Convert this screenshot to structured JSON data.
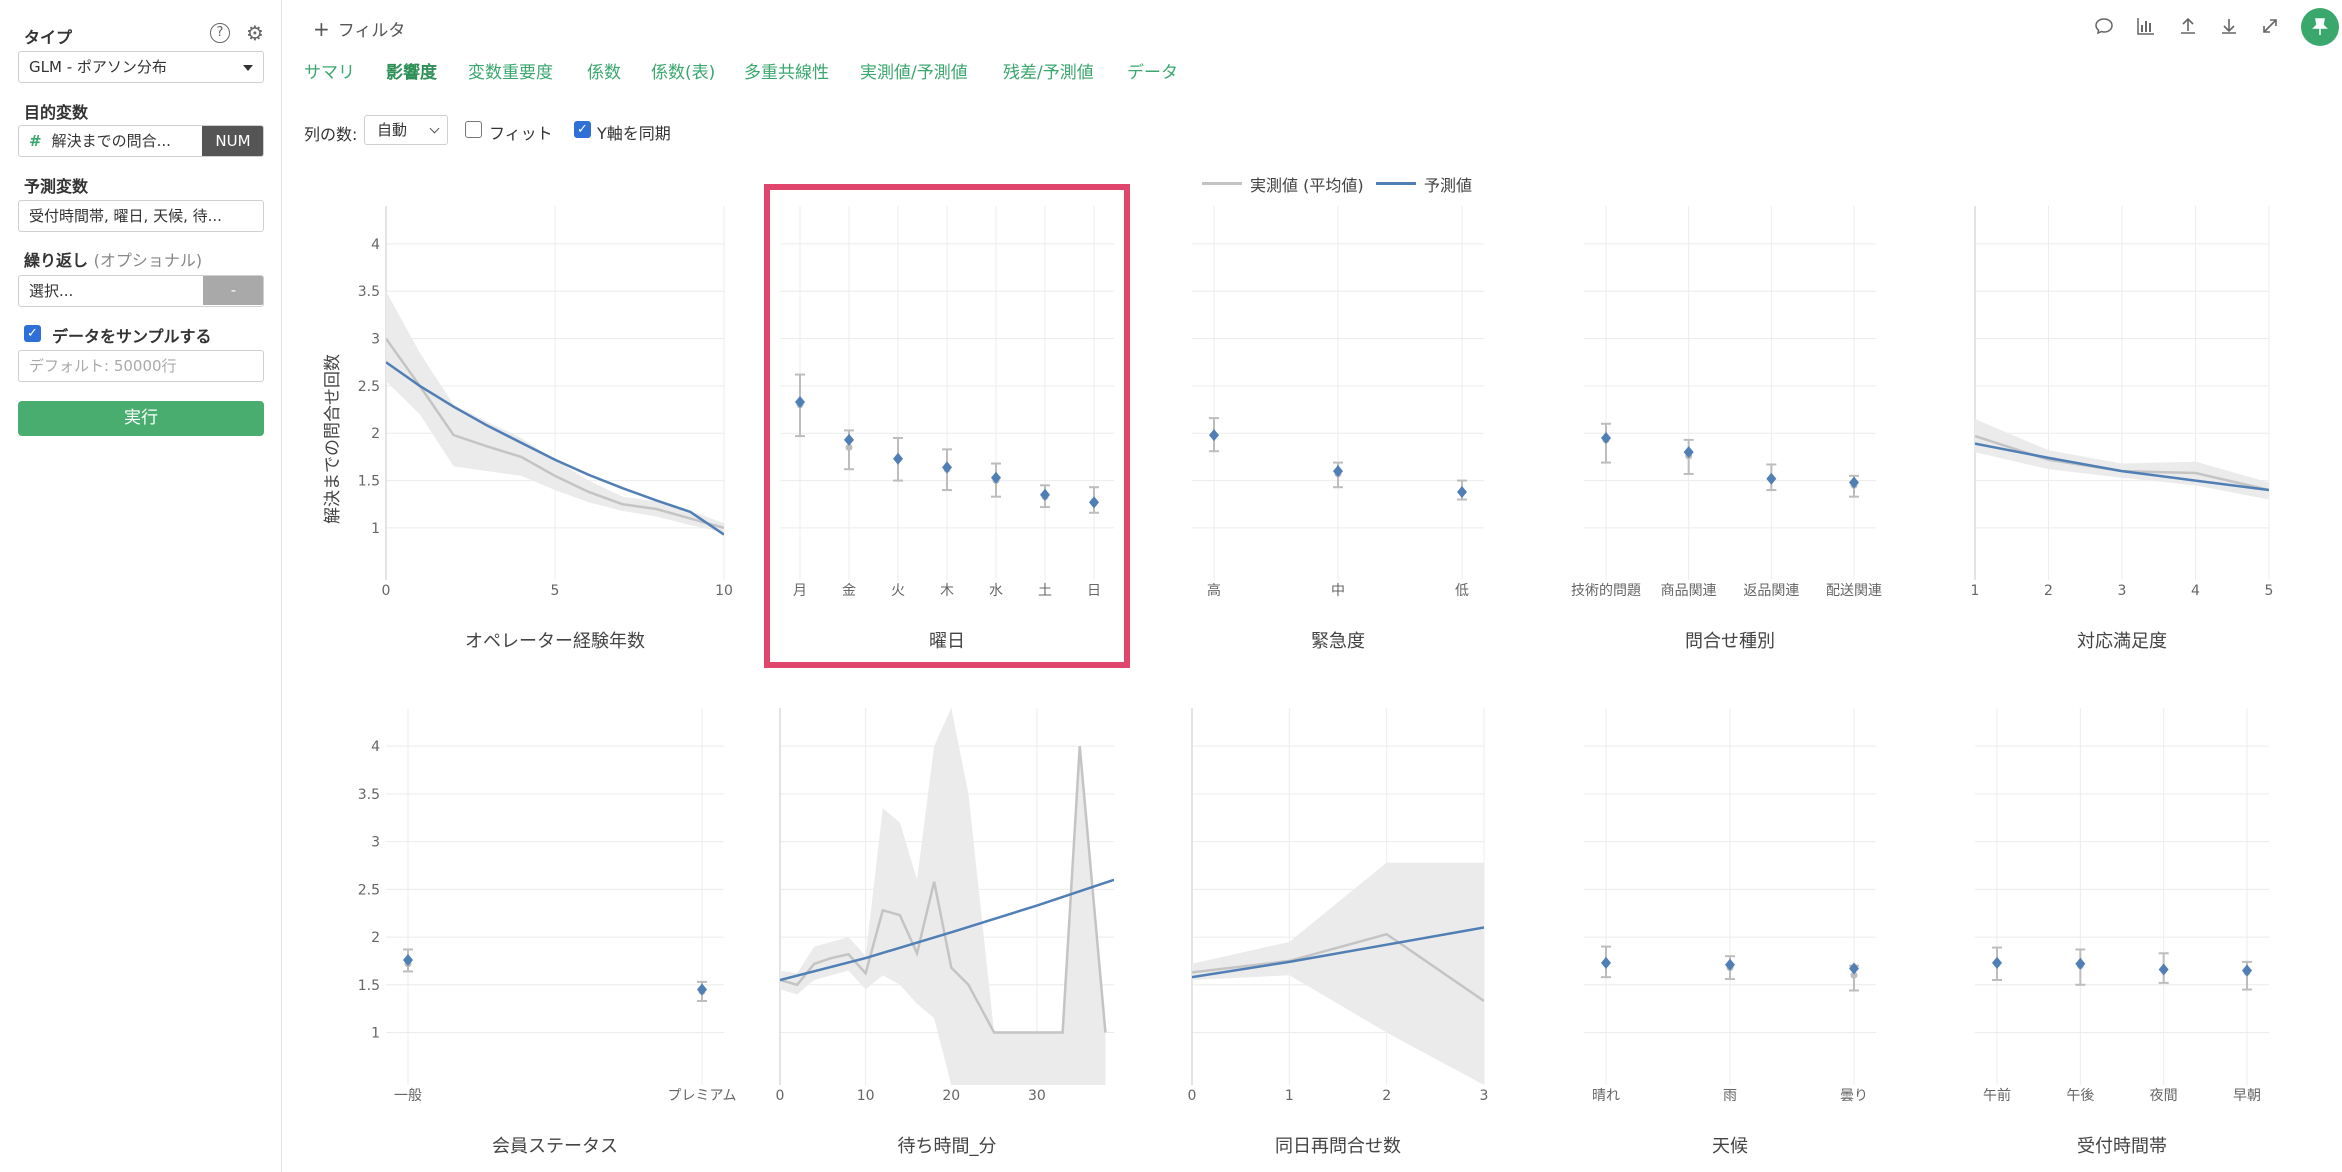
{
  "sidebar": {
    "type_label": "タイプ",
    "type_value": "GLM - ポアソン分布",
    "target_label": "目的変数",
    "target_hash": "#",
    "target_value": "解決までの問合...",
    "target_badge": "NUM",
    "predictor_label": "予測変数",
    "predictor_value": "受付時間帯, 曜日, 天候, 待...",
    "repeat_label": "繰り返し",
    "repeat_optional": "(オプショナル)",
    "repeat_value": "選択...",
    "repeat_button": "-",
    "sample_label": "データをサンプルする",
    "sample_placeholder": "デフォルト: 50000行",
    "run_button": "実行",
    "help_icon": "?",
    "gear_icon": "⚙"
  },
  "header": {
    "filter_label": "フィルタ",
    "filter_plus": "+",
    "tabs": [
      "サマリ",
      "影響度",
      "変数重要度",
      "係数",
      "係数(表)",
      "多重共線性",
      "実測値/予測値",
      "残差/予測値",
      "データ"
    ],
    "active_tab": "影響度",
    "toolbar_icons": [
      "comment-icon",
      "chart-icon",
      "upload-icon",
      "download-icon",
      "expand-icon"
    ],
    "pin_icon": "pin-icon"
  },
  "options": {
    "columns_label": "列の数:",
    "columns_value": "自動",
    "fit_label": "フィット",
    "sync_y_label": "Y軸を同期"
  },
  "colors": {
    "actual": "#c4c4c4",
    "predicted": "#4f7fb5",
    "band": "#ebebeb",
    "highlight": "#e0456c",
    "accent": "#3aa76d"
  },
  "chart_data": {
    "type": "line",
    "legend": [
      {
        "name": "実測値 (平均値)",
        "color": "#c4c4c4"
      },
      {
        "name": "予測値",
        "color": "#4f7fb5"
      }
    ],
    "legend_position": "top-center",
    "ylabel": "解決までの問合せ回数",
    "ylim": [
      0.45,
      4.4
    ],
    "yticks": [
      1,
      1.5,
      2,
      2.5,
      3,
      3.5,
      4
    ],
    "ytick_labels": [
      "1",
      "1.5",
      "2",
      "2.5",
      "3",
      "3.5",
      "4"
    ],
    "highlighted_panel": "曜日",
    "panels": [
      {
        "title": "オペレーター経験年数",
        "kind": "numeric",
        "xlim": [
          0,
          10
        ],
        "xticks": [
          0,
          5,
          10
        ],
        "xtick_labels": [
          "0",
          "5",
          "10"
        ],
        "actual": {
          "x": [
            0,
            1,
            2,
            3,
            4,
            5,
            6,
            7,
            8,
            9,
            10
          ],
          "y": [
            3.0,
            2.5,
            1.98,
            1.86,
            1.75,
            1.55,
            1.38,
            1.25,
            1.2,
            1.1,
            1.0
          ]
        },
        "band": {
          "x": [
            0,
            1,
            2,
            3,
            4,
            5,
            6,
            7,
            8,
            9,
            10
          ],
          "lower": [
            2.55,
            2.2,
            1.65,
            1.6,
            1.55,
            1.4,
            1.27,
            1.18,
            1.12,
            1.03,
            0.95
          ],
          "upper": [
            3.5,
            2.85,
            2.3,
            2.12,
            1.95,
            1.72,
            1.5,
            1.33,
            1.28,
            1.18,
            1.05
          ]
        },
        "predicted": {
          "x": [
            0,
            1,
            2,
            3,
            4,
            5,
            6,
            7,
            8,
            9,
            10
          ],
          "y": [
            2.75,
            2.5,
            2.28,
            2.08,
            1.9,
            1.72,
            1.56,
            1.42,
            1.29,
            1.17,
            0.93
          ]
        }
      },
      {
        "title": "曜日",
        "kind": "categorical",
        "categories": [
          "月",
          "金",
          "火",
          "木",
          "水",
          "土",
          "日"
        ],
        "actual": [
          2.3,
          1.85,
          1.73,
          1.62,
          1.5,
          1.33,
          1.28
        ],
        "actual_err_low": [
          1.97,
          1.62,
          1.5,
          1.4,
          1.33,
          1.22,
          1.16
        ],
        "actual_err_high": [
          2.62,
          2.03,
          1.95,
          1.83,
          1.68,
          1.45,
          1.43
        ],
        "predicted": [
          2.33,
          1.93,
          1.73,
          1.64,
          1.53,
          1.35,
          1.27
        ]
      },
      {
        "title": "緊急度",
        "kind": "categorical",
        "categories": [
          "高",
          "中",
          "低"
        ],
        "actual": [
          1.98,
          1.57,
          1.38
        ],
        "actual_err_low": [
          1.81,
          1.43,
          1.3
        ],
        "actual_err_high": [
          2.16,
          1.69,
          1.5
        ],
        "predicted": [
          1.98,
          1.6,
          1.38
        ]
      },
      {
        "title": "問合せ種別",
        "kind": "categorical",
        "categories": [
          "技術的問題",
          "商品関連",
          "返品関連",
          "配送関連"
        ],
        "actual": [
          1.93,
          1.76,
          1.52,
          1.45
        ],
        "actual_err_low": [
          1.69,
          1.57,
          1.4,
          1.33
        ],
        "actual_err_high": [
          2.1,
          1.93,
          1.67,
          1.55
        ],
        "predicted": [
          1.95,
          1.8,
          1.52,
          1.48
        ]
      },
      {
        "title": "対応満足度",
        "kind": "numeric",
        "xlim": [
          1,
          5
        ],
        "xticks": [
          1,
          2,
          3,
          4,
          5
        ],
        "xtick_labels": [
          "1",
          "2",
          "3",
          "4",
          "5"
        ],
        "actual": {
          "x": [
            1,
            2,
            3,
            4,
            5
          ],
          "y": [
            1.97,
            1.72,
            1.6,
            1.58,
            1.4
          ]
        },
        "band": {
          "x": [
            1,
            2,
            3,
            4,
            5
          ],
          "lower": [
            1.8,
            1.62,
            1.53,
            1.45,
            1.3
          ],
          "upper": [
            2.15,
            1.82,
            1.68,
            1.7,
            1.48
          ]
        },
        "predicted": {
          "x": [
            1,
            2,
            3,
            4,
            5
          ],
          "y": [
            1.89,
            1.74,
            1.6,
            1.5,
            1.4
          ]
        }
      },
      {
        "title": "会員ステータス",
        "kind": "categorical",
        "categories": [
          "一般",
          "プレミアム"
        ],
        "actual": [
          1.72,
          1.43
        ],
        "actual_err_low": [
          1.64,
          1.33
        ],
        "actual_err_high": [
          1.87,
          1.53
        ],
        "predicted": [
          1.76,
          1.45
        ]
      },
      {
        "title": "待ち時間_分",
        "kind": "numeric",
        "xlim": [
          0,
          39
        ],
        "xticks": [
          0,
          10,
          20,
          30
        ],
        "xtick_labels": [
          "0",
          "10",
          "20",
          "30"
        ],
        "actual": {
          "x": [
            0,
            2,
            4,
            6,
            8,
            10,
            12,
            14,
            16,
            18,
            20,
            22,
            25,
            30,
            33,
            35,
            38
          ],
          "y": [
            1.55,
            1.5,
            1.72,
            1.78,
            1.82,
            1.62,
            2.28,
            2.23,
            1.83,
            2.58,
            1.68,
            1.5,
            1.0,
            1.0,
            1.0,
            4.0,
            1.0
          ]
        },
        "band": {
          "x": [
            0,
            2,
            4,
            6,
            8,
            10,
            12,
            14,
            16,
            18,
            20,
            22,
            25,
            30,
            33,
            35,
            38
          ],
          "lower": [
            1.45,
            1.4,
            1.55,
            1.6,
            1.65,
            1.45,
            1.6,
            1.5,
            1.3,
            1.15,
            0.45,
            0.45,
            0.45,
            0.45,
            0.45,
            0.45,
            0.45
          ],
          "upper": [
            1.65,
            1.62,
            1.9,
            1.95,
            2.0,
            1.8,
            3.35,
            3.2,
            2.6,
            4.0,
            4.4,
            3.5,
            1.0,
            1.0,
            1.0,
            4.0,
            1.0
          ]
        },
        "predicted": {
          "x": [
            0,
            10,
            20,
            30,
            39
          ],
          "y": [
            1.55,
            1.78,
            2.05,
            2.33,
            2.6
          ]
        }
      },
      {
        "title": "同日再問合せ数",
        "kind": "numeric",
        "xlim": [
          0,
          3
        ],
        "xticks": [
          0,
          1,
          2,
          3
        ],
        "xtick_labels": [
          "0",
          "1",
          "2",
          "3"
        ],
        "actual": {
          "x": [
            0,
            1,
            2,
            3
          ],
          "y": [
            1.63,
            1.75,
            2.03,
            1.33
          ]
        },
        "band": {
          "x": [
            0,
            1,
            2,
            3
          ],
          "lower": [
            1.55,
            1.6,
            1.0,
            0.45
          ],
          "upper": [
            1.72,
            1.95,
            2.78,
            2.78
          ]
        },
        "predicted": {
          "x": [
            0,
            1,
            2,
            3
          ],
          "y": [
            1.58,
            1.74,
            1.92,
            2.1
          ]
        }
      },
      {
        "title": "天候",
        "kind": "categorical",
        "categories": [
          "晴れ",
          "雨",
          "曇り"
        ],
        "actual": [
          1.72,
          1.68,
          1.6
        ],
        "actual_err_low": [
          1.58,
          1.56,
          1.44
        ],
        "actual_err_high": [
          1.9,
          1.8,
          1.7
        ],
        "predicted": [
          1.73,
          1.71,
          1.67
        ]
      },
      {
        "title": "受付時間帯",
        "kind": "categorical",
        "categories": [
          "午前",
          "午後",
          "夜間",
          "早朝"
        ],
        "actual": [
          1.72,
          1.7,
          1.66,
          1.63
        ],
        "actual_err_low": [
          1.55,
          1.5,
          1.52,
          1.45
        ],
        "actual_err_high": [
          1.89,
          1.87,
          1.83,
          1.74
        ],
        "predicted": [
          1.73,
          1.72,
          1.66,
          1.65
        ]
      }
    ]
  }
}
